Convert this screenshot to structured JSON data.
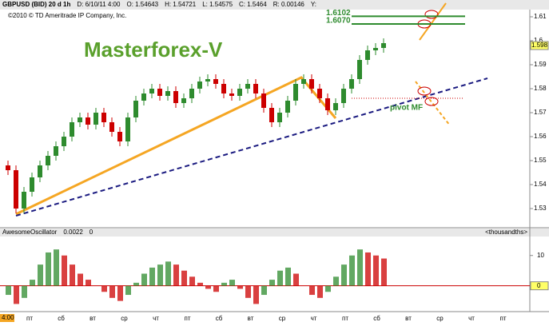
{
  "chart_data": {
    "type": "candlestick",
    "title": "Masterforex-V",
    "copyright": "©2010 © TD Ameritrade IP Company, Inc.",
    "header": [
      "GBPUSD (BID) 20 d 1h",
      "D: 6/10/11 4:00",
      "O: 1.54643",
      "H: 1.54721",
      "L: 1.54575",
      "C: 1.5464",
      "R: 0.00146",
      "Y:"
    ],
    "open": [
      1.548,
      1.546,
      1.53,
      1.537,
      1.543,
      1.548,
      1.552,
      1.556,
      1.56,
      1.566,
      1.568,
      1.565,
      1.57,
      1.566,
      1.562,
      1.558,
      1.568,
      1.575,
      1.578,
      1.58,
      1.577,
      1.579,
      1.574,
      1.576,
      1.58,
      1.583,
      1.584,
      1.582,
      1.578,
      1.577,
      1.58,
      1.582,
      1.578,
      1.572,
      1.566,
      1.57,
      1.575,
      1.582,
      1.584,
      1.58,
      1.576,
      1.571,
      1.574,
      1.58,
      1.584,
      1.592,
      1.596,
      1.597
    ],
    "high": [
      1.55,
      1.548,
      1.539,
      1.545,
      1.55,
      1.554,
      1.558,
      1.562,
      1.568,
      1.57,
      1.57,
      1.572,
      1.572,
      1.568,
      1.564,
      1.57,
      1.577,
      1.58,
      1.582,
      1.582,
      1.581,
      1.581,
      1.578,
      1.582,
      1.585,
      1.586,
      1.586,
      1.584,
      1.58,
      1.582,
      1.584,
      1.584,
      1.58,
      1.574,
      1.572,
      1.577,
      1.584,
      1.586,
      1.586,
      1.582,
      1.578,
      1.576,
      1.582,
      1.586,
      1.594,
      1.598,
      1.599,
      1.601
    ],
    "low": [
      1.544,
      1.528,
      1.528,
      1.535,
      1.541,
      1.546,
      1.55,
      1.554,
      1.558,
      1.564,
      1.563,
      1.563,
      1.564,
      1.56,
      1.556,
      1.556,
      1.566,
      1.573,
      1.576,
      1.575,
      1.575,
      1.572,
      1.572,
      1.574,
      1.578,
      1.581,
      1.58,
      1.576,
      1.575,
      1.575,
      1.578,
      1.576,
      1.57,
      1.564,
      1.564,
      1.568,
      1.573,
      1.58,
      1.578,
      1.574,
      1.569,
      1.569,
      1.572,
      1.578,
      1.582,
      1.59,
      1.594,
      1.595
    ],
    "close": [
      1.546,
      1.53,
      1.537,
      1.543,
      1.548,
      1.552,
      1.556,
      1.56,
      1.566,
      1.568,
      1.565,
      1.57,
      1.566,
      1.562,
      1.558,
      1.568,
      1.575,
      1.578,
      1.58,
      1.577,
      1.579,
      1.574,
      1.576,
      1.58,
      1.583,
      1.584,
      1.582,
      1.578,
      1.577,
      1.58,
      1.582,
      1.578,
      1.572,
      1.566,
      1.57,
      1.575,
      1.582,
      1.584,
      1.58,
      1.576,
      1.571,
      1.574,
      1.58,
      1.584,
      1.592,
      1.596,
      1.597,
      1.599
    ],
    "up_color": "#2e8b2e",
    "down_color": "#cc0000",
    "ylim": [
      1.522,
      1.613
    ],
    "yticks": [
      1.53,
      1.54,
      1.55,
      1.56,
      1.57,
      1.58,
      1.59,
      1.6,
      1.61
    ],
    "last_price": 1.598,
    "levels": [
      {
        "value": 1.6102,
        "label": "1.6102"
      },
      {
        "value": 1.607,
        "label": "1.6070"
      }
    ],
    "pivot": {
      "value": 1.576,
      "label": "pivot MF"
    },
    "x_labels": [
      "пт",
      "сб",
      "вт",
      "ср",
      "чт",
      "пт",
      "сб",
      "вт",
      "ср",
      "чт",
      "пт",
      "сб",
      "вт",
      "ср",
      "чт",
      "пт"
    ],
    "time_label": "4:00",
    "oscillator": {
      "name": "AwesomeOscillator",
      "readout": "0.0022",
      "readout2": "0",
      "units": "<thousandths>",
      "values": [
        -3,
        -6,
        -4,
        2,
        7,
        11,
        12,
        10,
        7,
        4,
        2,
        0,
        -2,
        -4,
        -5,
        -3,
        1,
        4,
        6,
        7,
        8,
        7,
        5,
        3,
        1,
        -1,
        -2,
        1,
        2,
        -1,
        -4,
        -6,
        -3,
        2,
        5,
        6,
        4,
        0,
        -3,
        -4,
        -2,
        3,
        7,
        10,
        12,
        11,
        10,
        9
      ],
      "ylim": [
        -8,
        16
      ],
      "yticks": [
        10,
        0
      ]
    }
  }
}
